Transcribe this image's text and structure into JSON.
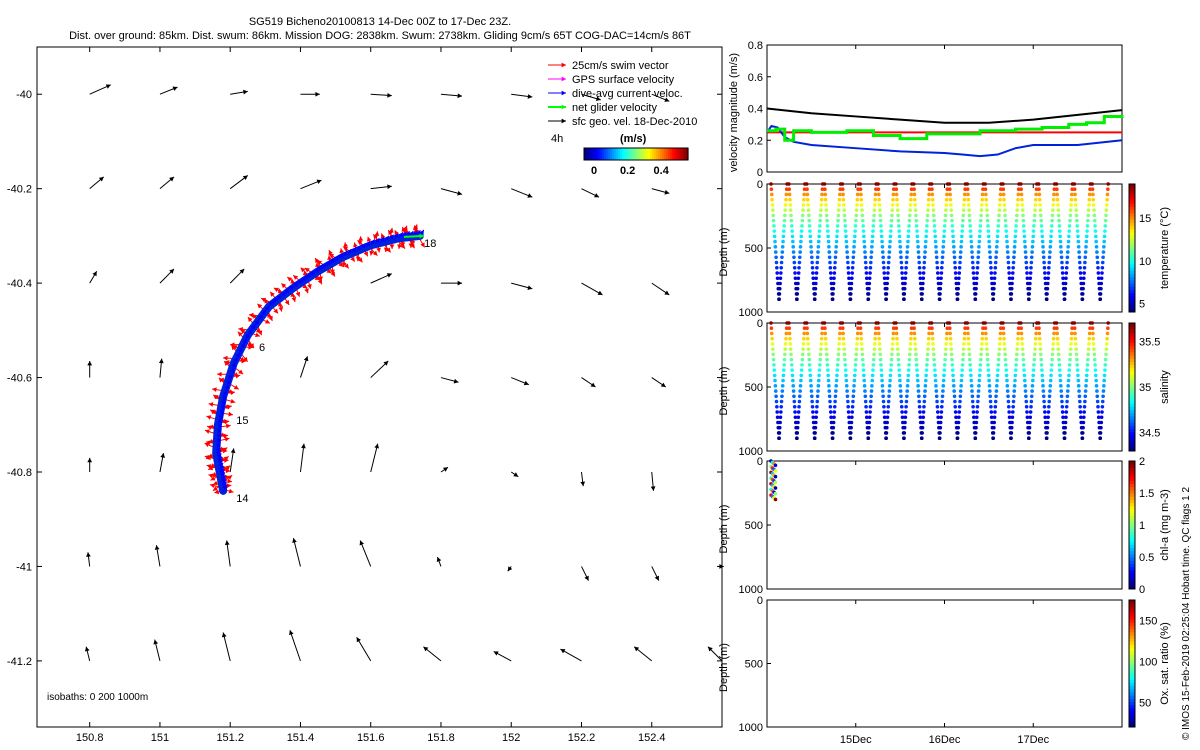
{
  "title_line1": "SG519 Bicheno20100813 14-Dec 00Z to 17-Dec 23Z.",
  "title_line2": "Dist. over ground: 85km. Dist. swum: 86km. Mission DOG: 2838km. Swum: 2738km. Gliding 9cm/s 65T COG-DAC=14cm/s 86T",
  "credit": "© IMOS 15-Feb-2019 02:25:04 Hobart time. QC flags 1  2",
  "colors": {
    "swim": "#ff0000",
    "gps": "#ff00ff",
    "dac": "#0000ff",
    "net": "#00ff00",
    "geo": "#000000",
    "trace": "#0022dd"
  },
  "chart_data": [
    {
      "type": "scatter",
      "name": "track-map",
      "xlim": [
        150.65,
        152.6
      ],
      "ylim": [
        -41.34,
        -39.9
      ],
      "xticks": [
        150.8,
        151,
        151.2,
        151.4,
        151.6,
        151.8,
        152,
        152.2,
        152.4
      ],
      "yticks": [
        -40,
        -40.2,
        -40.4,
        -40.6,
        -40.8,
        -41,
        -41.2
      ],
      "legend": {
        "placement": "top-right",
        "entries": [
          "25cm/s swim vector",
          "GPS surface velocity",
          "dive-avg current veloc.",
          "net glider velocity",
          "sfc geo. vel. 18-Dec-2010"
        ],
        "scale_text": "4h",
        "colorbar_label": "(m/s)",
        "colorbar_ticks": [
          0,
          0.2,
          0.4
        ]
      },
      "isobaths_text": "isobaths: 0   200  1000m",
      "track": [
        [
          151.18,
          -40.84
        ],
        [
          151.17,
          -40.8
        ],
        [
          151.16,
          -40.76
        ],
        [
          151.165,
          -40.7
        ],
        [
          151.18,
          -40.64
        ],
        [
          151.21,
          -40.57
        ],
        [
          151.25,
          -40.51
        ],
        [
          151.31,
          -40.45
        ],
        [
          151.38,
          -40.41
        ],
        [
          151.45,
          -40.375
        ],
        [
          151.52,
          -40.345
        ],
        [
          151.6,
          -40.32
        ],
        [
          151.68,
          -40.305
        ],
        [
          151.74,
          -40.3
        ]
      ],
      "day_labels": [
        {
          "text": "14",
          "lon": 151.2,
          "lat": -40.855
        },
        {
          "text": "15",
          "lon": 151.2,
          "lat": -40.69
        },
        {
          "text": "6",
          "lon": 151.265,
          "lat": -40.535
        },
        {
          "text": "18",
          "lon": 151.735,
          "lat": -40.315
        }
      ],
      "geo_vectors": [
        [
          150.8,
          -40,
          0.06,
          0.02
        ],
        [
          151,
          -40,
          0.05,
          0.015
        ],
        [
          151.2,
          -40,
          0.05,
          0.006
        ],
        [
          151.4,
          -40,
          0.055,
          0
        ],
        [
          151.6,
          -40,
          0.06,
          -0.003
        ],
        [
          151.8,
          -40,
          0.06,
          -0.004
        ],
        [
          152,
          -40,
          0.06,
          -0.006
        ],
        [
          152.2,
          -40,
          0.055,
          -0.012
        ],
        [
          152.4,
          -40,
          0.05,
          -0.015
        ],
        [
          150.8,
          -40.2,
          0.04,
          0.025
        ],
        [
          151,
          -40.2,
          0.04,
          0.025
        ],
        [
          151.2,
          -40.2,
          0.05,
          0.028
        ],
        [
          151.4,
          -40.2,
          0.06,
          0.018
        ],
        [
          151.6,
          -40.2,
          0.06,
          0.005
        ],
        [
          151.8,
          -40.2,
          0.06,
          -0.012
        ],
        [
          152,
          -40.2,
          0.06,
          -0.018
        ],
        [
          152.2,
          -40.2,
          0.05,
          -0.018
        ],
        [
          152.4,
          -40.2,
          0.05,
          -0.01
        ],
        [
          150.8,
          -40.4,
          0.02,
          0.025
        ],
        [
          151,
          -40.4,
          0.04,
          0.03
        ],
        [
          151.2,
          -40.4,
          0.04,
          0.03
        ],
        [
          151.4,
          -40.4,
          0.05,
          0.025
        ],
        [
          151.6,
          -40.4,
          0.06,
          0.02
        ],
        [
          151.8,
          -40.4,
          0.06,
          0
        ],
        [
          152,
          -40.4,
          0.06,
          -0.012
        ],
        [
          152.2,
          -40.4,
          0.06,
          -0.025
        ],
        [
          152.4,
          -40.4,
          0.05,
          -0.025
        ],
        [
          150.8,
          -40.6,
          0,
          0.035
        ],
        [
          151,
          -40.6,
          0.005,
          0.04
        ],
        [
          151.2,
          -40.6,
          0.01,
          0.045
        ],
        [
          151.4,
          -40.6,
          0.02,
          0.045
        ],
        [
          151.6,
          -40.6,
          0.05,
          0.035
        ],
        [
          151.8,
          -40.6,
          0.05,
          -0.01
        ],
        [
          152,
          -40.6,
          0.05,
          -0.015
        ],
        [
          152.2,
          -40.6,
          0.04,
          -0.02
        ],
        [
          152.4,
          -40.6,
          0.04,
          -0.02
        ],
        [
          150.8,
          -40.8,
          0,
          0.03
        ],
        [
          151,
          -40.8,
          0.01,
          0.04
        ],
        [
          151.2,
          -40.8,
          0.01,
          0.05
        ],
        [
          151.4,
          -40.8,
          0.01,
          0.06
        ],
        [
          151.6,
          -40.8,
          0.02,
          0.06
        ],
        [
          151.8,
          -40.8,
          0.02,
          0.01
        ],
        [
          152,
          -40.8,
          0.02,
          -0.01
        ],
        [
          152.2,
          -40.8,
          0.005,
          -0.03
        ],
        [
          152.4,
          -40.8,
          0.005,
          -0.04
        ],
        [
          150.8,
          -41,
          -0.005,
          0.03
        ],
        [
          151,
          -41,
          -0.01,
          0.045
        ],
        [
          151.2,
          -41,
          -0.01,
          0.055
        ],
        [
          151.4,
          -41,
          -0.02,
          0.06
        ],
        [
          151.6,
          -41,
          -0.03,
          0.055
        ],
        [
          151.8,
          -41,
          -0.01,
          0.02
        ],
        [
          152,
          -41,
          -0.01,
          -0.01
        ],
        [
          152.2,
          -41,
          0.02,
          -0.03
        ],
        [
          152.4,
          -41,
          0.02,
          -0.03
        ],
        [
          152.6,
          -41,
          0.005,
          0
        ],
        [
          150.8,
          -41.2,
          -0.01,
          0.03
        ],
        [
          151,
          -41.2,
          -0.015,
          0.045
        ],
        [
          151.2,
          -41.2,
          -0.02,
          0.06
        ],
        [
          151.4,
          -41.2,
          -0.03,
          0.065
        ],
        [
          151.6,
          -41.2,
          -0.04,
          0.05
        ],
        [
          151.8,
          -41.2,
          -0.05,
          0.03
        ],
        [
          152,
          -41.2,
          -0.05,
          0.02
        ],
        [
          152.2,
          -41.2,
          -0.06,
          0.025
        ],
        [
          152.4,
          -41.2,
          -0.05,
          0.03
        ],
        [
          152.6,
          -41.2,
          -0.04,
          0.03
        ]
      ]
    },
    {
      "type": "line",
      "name": "velocity",
      "ylabel": "velocity magnitude (m/s)",
      "ylim": [
        0,
        0.8
      ],
      "yticks": [
        0,
        0.2,
        0.4,
        0.6,
        0.8
      ],
      "x_range_days": [
        14,
        18
      ],
      "series": [
        {
          "color": "#000000",
          "x": [
            14,
            14.5,
            15,
            15.5,
            16,
            16.5,
            17,
            17.5,
            18
          ],
          "values": [
            0.4,
            0.37,
            0.35,
            0.33,
            0.31,
            0.31,
            0.33,
            0.36,
            0.39
          ]
        },
        {
          "color": "#ff0000",
          "x": [
            14,
            18
          ],
          "values": [
            0.25,
            0.25
          ]
        },
        {
          "color": "#0022dd",
          "x": [
            14,
            14.05,
            14.12,
            14.2,
            14.3,
            14.5,
            15,
            15.5,
            16,
            16.2,
            16.4,
            16.6,
            16.8,
            17,
            17.5,
            18
          ],
          "values": [
            0.25,
            0.29,
            0.28,
            0.22,
            0.19,
            0.17,
            0.15,
            0.13,
            0.12,
            0.11,
            0.1,
            0.11,
            0.15,
            0.17,
            0.17,
            0.2
          ]
        },
        {
          "color": "#00ee00",
          "x": [
            14,
            14.1,
            14.2,
            14.3,
            14.5,
            14.9,
            15.2,
            15.5,
            15.8,
            16.1,
            16.4,
            16.8,
            17.1,
            17.4,
            17.6,
            17.8,
            18
          ],
          "values": [
            0.26,
            0.27,
            0.2,
            0.26,
            0.25,
            0.26,
            0.23,
            0.21,
            0.24,
            0.24,
            0.26,
            0.27,
            0.28,
            0.3,
            0.31,
            0.35,
            0.34
          ]
        }
      ]
    },
    {
      "type": "scatter",
      "name": "temperature-section",
      "ylabel": "Depth (m)",
      "ylim": [
        0,
        1000
      ],
      "yticks": [
        0,
        500,
        1000
      ],
      "colorbar_label": "temperature (°C)",
      "colorbar_ticks": [
        5,
        10,
        15
      ],
      "colorbar_range": [
        4,
        19
      ],
      "dive_count": 19,
      "max_depth": 900
    },
    {
      "type": "scatter",
      "name": "salinity-section",
      "ylabel": "Depth (m)",
      "ylim": [
        0,
        1000
      ],
      "yticks": [
        0,
        500,
        1000
      ],
      "colorbar_label": "salinity",
      "colorbar_ticks": [
        34.5,
        35,
        35.5
      ],
      "colorbar_range": [
        34.3,
        35.7
      ],
      "dive_count": 19,
      "max_depth": 900
    },
    {
      "type": "scatter",
      "name": "chla-section",
      "ylabel": "Depth (m)",
      "ylim": [
        0,
        1000
      ],
      "yticks": [
        0,
        500,
        1000
      ],
      "colorbar_label": "chl-a (mg m-3)",
      "colorbar_ticks": [
        0,
        0.5,
        1,
        1.5,
        2
      ],
      "colorbar_range": [
        0,
        2
      ],
      "depth_max_points": 300
    },
    {
      "type": "scatter",
      "name": "oxygen-section",
      "ylabel": "Depth (m)",
      "ylim": [
        0,
        1000
      ],
      "yticks": [
        0,
        500,
        1000
      ],
      "colorbar_label": "Ox. sat. ratio (%)",
      "colorbar_ticks": [
        50,
        100,
        150
      ],
      "colorbar_range": [
        20,
        175
      ]
    }
  ],
  "time_axis": {
    "ticks": [
      {
        "day": 15,
        "label": "15Dec"
      },
      {
        "day": 16,
        "label": "16Dec"
      },
      {
        "day": 17,
        "label": "17Dec"
      }
    ]
  }
}
